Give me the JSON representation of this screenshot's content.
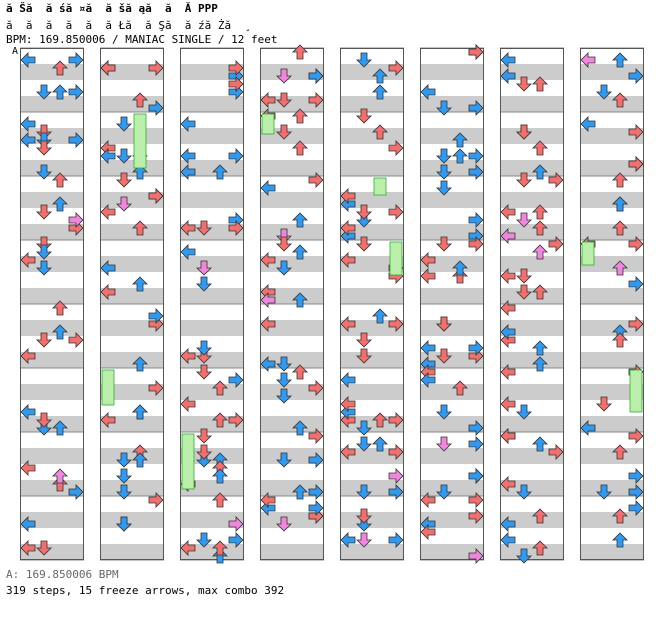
{
  "header": {
    "title": "ă Šă  ă śă ¤ă  ă šă ąă  ă  Ă PPP",
    "subtitle": "ă  ă  ă  ă  ă  ă Łă  ă Şă  ă źă Żă  ¸",
    "info": "BPM: 169.850006 / MANIAC SINGLE / 12 feet"
  },
  "marker": "A",
  "footer": {
    "bpm_line": "A: 169.850006 BPM",
    "stats_line": "319 steps, 15 freeze arrows, max combo 392"
  },
  "colors": {
    "red": "#f07070",
    "blue": "#3399ee",
    "pink": "#ee88dd",
    "freeze": "#bbeeaa"
  },
  "chart_data": {
    "type": "step-chart",
    "mode": "MANIAC SINGLE",
    "columns": 8,
    "measures_per_column": 8,
    "lanes": [
      "left",
      "down",
      "up",
      "right"
    ],
    "freeze_arrows": 15
  }
}
